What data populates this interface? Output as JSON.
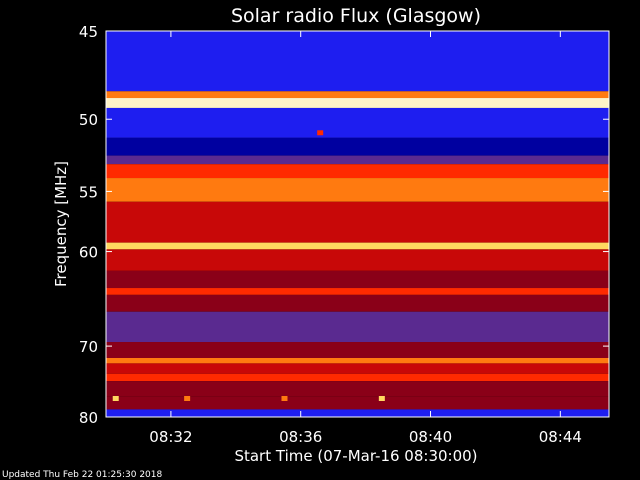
{
  "chart_data": {
    "type": "heatmap",
    "title": "Solar radio Flux (Glasgow)",
    "xlabel": "Start Time (07-Mar-16 08:30:00)",
    "ylabel": "Frequency [MHz]",
    "x_unit": "minutes after 08:30:00",
    "xlim": [
      0,
      15.5
    ],
    "ylim": [
      80,
      45
    ],
    "y_scale": "inverse",
    "x_ticks": [
      {
        "value": 2,
        "label": "08:32"
      },
      {
        "value": 6,
        "label": "08:36"
      },
      {
        "value": 10,
        "label": "08:40"
      },
      {
        "value": 14,
        "label": "08:44"
      }
    ],
    "y_ticks": [
      {
        "value": 45,
        "label": "45"
      },
      {
        "value": 50,
        "label": "50"
      },
      {
        "value": 55,
        "label": "55"
      },
      {
        "value": 60,
        "label": "60"
      },
      {
        "value": 70,
        "label": "70"
      },
      {
        "value": 80,
        "label": "80"
      }
    ],
    "grid": false,
    "colormap": [
      "#0000a0",
      "#1e1ef0",
      "#5a2a90",
      "#8a0018",
      "#c80808",
      "#ff2a00",
      "#ff7a10",
      "#ffd860",
      "#fff4c8"
    ],
    "bands": [
      {
        "f0": 45.0,
        "f1": 48.3,
        "level": 1
      },
      {
        "f0": 48.3,
        "f1": 48.7,
        "level": 6
      },
      {
        "f0": 48.7,
        "f1": 49.3,
        "level": 8
      },
      {
        "f0": 49.3,
        "f1": 51.2,
        "level": 1
      },
      {
        "f0": 51.2,
        "f1": 52.4,
        "level": 0
      },
      {
        "f0": 52.4,
        "f1": 53.0,
        "level": 2
      },
      {
        "f0": 53.0,
        "f1": 54.0,
        "level": 5
      },
      {
        "f0": 54.0,
        "f1": 55.8,
        "level": 6
      },
      {
        "f0": 55.8,
        "f1": 59.2,
        "level": 4
      },
      {
        "f0": 59.2,
        "f1": 59.8,
        "level": 7
      },
      {
        "f0": 59.8,
        "f1": 61.8,
        "level": 4
      },
      {
        "f0": 61.8,
        "f1": 63.5,
        "level": 3
      },
      {
        "f0": 63.5,
        "f1": 64.2,
        "level": 5
      },
      {
        "f0": 64.2,
        "f1": 66.0,
        "level": 3
      },
      {
        "f0": 66.0,
        "f1": 69.5,
        "level": 2
      },
      {
        "f0": 69.5,
        "f1": 71.5,
        "level": 3
      },
      {
        "f0": 71.5,
        "f1": 72.2,
        "level": 6
      },
      {
        "f0": 72.2,
        "f1": 73.6,
        "level": 4
      },
      {
        "f0": 73.6,
        "f1": 74.6,
        "level": 5
      },
      {
        "f0": 74.6,
        "f1": 76.8,
        "level": 3
      },
      {
        "f0": 76.8,
        "f1": 78.8,
        "level": 3
      },
      {
        "f0": 78.8,
        "f1": 80.0,
        "level": 1
      }
    ],
    "bursts": [
      {
        "t": 0.3,
        "f": 77.2,
        "level": 7
      },
      {
        "t": 2.5,
        "f": 77.2,
        "level": 6
      },
      {
        "t": 5.5,
        "f": 77.2,
        "level": 6
      },
      {
        "t": 8.5,
        "f": 77.2,
        "level": 7
      },
      {
        "t": 6.6,
        "f": 50.9,
        "level": 5
      }
    ]
  },
  "footer": {
    "updated": "Updated Thu Feb 22 01:25:30 2018"
  }
}
